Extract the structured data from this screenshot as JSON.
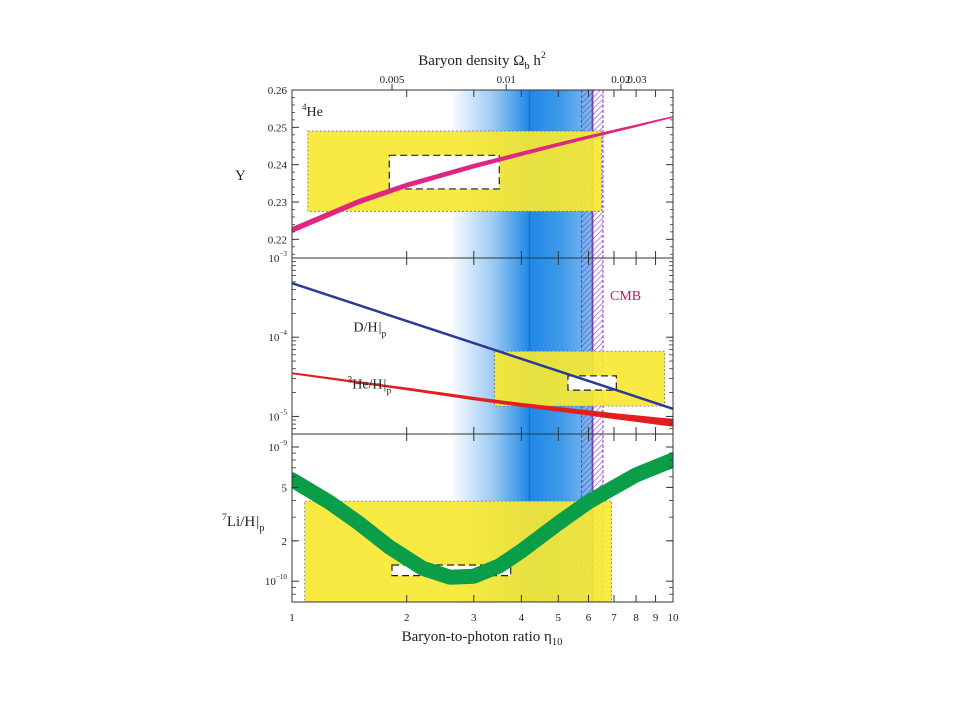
{
  "figure": {
    "top_axis_title": "Baryon density Ω",
    "top_axis_title_sub": "b",
    "top_axis_title_tail": " h",
    "top_axis_title_sup": "2",
    "bottom_axis_title": "Baryon-to-photon ratio η",
    "bottom_axis_title_sub": "10",
    "cmb_label": "CMB"
  },
  "chart_data": {
    "type": "line",
    "x_scale": "log",
    "xlim": [
      1,
      10
    ],
    "x_ticks": [
      1,
      2,
      3,
      4,
      5,
      6,
      7,
      8,
      9,
      10
    ],
    "top_axis": {
      "ticks": [
        {
          "label": "0.005",
          "eta10": 1.83
        },
        {
          "label": "0.01",
          "eta10": 3.65
        },
        {
          "label": "0.02",
          "eta10": 7.3
        },
        {
          "label": "0.03",
          "eta10": 10.95
        }
      ]
    },
    "bands": {
      "bbn_concordance": {
        "eta10_range": [
          2.6,
          6.2
        ],
        "peak_eta10": 4.2,
        "color": "#1e88e5"
      },
      "cmb": {
        "eta10_range": [
          5.75,
          6.55
        ],
        "label": "CMB",
        "color": "#8a2be2",
        "label_color": "#c2185b"
      }
    },
    "panels": [
      {
        "id": "he4",
        "label": "He",
        "label_sup": "4",
        "ylabel": "Y",
        "yscale": "linear",
        "ylim": [
          0.215,
          0.26
        ],
        "y_ticks": [
          {
            "label": "0.22",
            "value": 0.22
          },
          {
            "label": "0.23",
            "value": 0.23
          },
          {
            "label": "0.24",
            "value": 0.24
          },
          {
            "label": "0.25",
            "value": 0.25
          },
          {
            "label": "0.26",
            "value": 0.26
          }
        ],
        "series": [
          {
            "color": "#e0267f",
            "x": [
              1.0,
              1.5,
              2.0,
              3.0,
              4.0,
              5.0,
              6.0,
              7.0,
              8.0,
              9.0,
              10.0
            ],
            "y": [
              0.2225,
              0.2301,
              0.2345,
              0.2396,
              0.2429,
              0.2454,
              0.2474,
              0.249,
              0.2504,
              0.2517,
              0.2528
            ],
            "width_start": 6,
            "width_end": 1.6
          }
        ],
        "obs_boxes": [
          {
            "x": [
              1.1,
              6.5
            ],
            "y": [
              0.2275,
              0.249
            ],
            "style": "yellow",
            "color": "#f7e832"
          },
          {
            "x": [
              1.8,
              3.5
            ],
            "y": [
              0.2335,
              0.2425
            ],
            "style": "dashed-white"
          }
        ]
      },
      {
        "id": "d_he3",
        "ylabel": "",
        "yscale": "log",
        "ylim": [
          6e-06,
          0.001
        ],
        "y_ticks": [
          {
            "base": "10",
            "exp": "−3",
            "value": 0.001
          },
          {
            "base": "10",
            "exp": "−4",
            "value": 0.0001
          },
          {
            "base": "10",
            "exp": "−5",
            "value": 1e-05
          }
        ],
        "series": [
          {
            "label": "D/H",
            "label_sub": "p",
            "color": "#2b3a98",
            "x": [
              1,
              10
            ],
            "y": [
              0.00048,
              1.25e-05
            ],
            "width": 2.5,
            "label_at": {
              "x": 1.45,
              "y": 0.000118
            }
          },
          {
            "label": "He/H",
            "label_sup": "3",
            "label_sub": "p",
            "color": "#e02020",
            "x": [
              1.0,
              2.0,
              3.0,
              4.0,
              5.0,
              6.0,
              7.0,
              8.0,
              9.0,
              10.0
            ],
            "y": [
              3.5e-05,
              2.23e-05,
              1.68e-05,
              1.4e-05,
              1.23e-05,
              1.11e-05,
              1.01e-05,
              9.4e-06,
              8.8e-06,
              8.3e-06
            ],
            "width_start": 2,
            "width_end": 8,
            "label_at": {
              "x": 1.4,
              "y": 2.25e-05
            }
          }
        ],
        "obs_boxes": [
          {
            "x": [
              3.4,
              9.5
            ],
            "y": [
              1.35e-05,
              6.65e-05
            ],
            "style": "yellow",
            "color": "#f7e832"
          },
          {
            "x": [
              5.3,
              7.1
            ],
            "y": [
              2.15e-05,
              3.25e-05
            ],
            "style": "dashed-white"
          }
        ]
      },
      {
        "id": "li7",
        "label": "Li/H",
        "label_sup": "7",
        "label_sub": "p",
        "ylabel": "Li/H",
        "yscale": "log",
        "ylim": [
          7e-11,
          1.25e-09
        ],
        "y_ticks": [
          {
            "base": "10",
            "exp": "−9",
            "value": 1e-09
          },
          {
            "label": "5",
            "value": 5e-10
          },
          {
            "label": "2",
            "value": 2e-10
          },
          {
            "base": "10",
            "exp": "−10",
            "value": 1e-10
          }
        ],
        "series": [
          {
            "color": "#0b9e48",
            "x": [
              1.0,
              1.25,
              1.5,
              1.8,
              2.2,
              2.6,
              3.0,
              3.5,
              4.0,
              5.0,
              6.0,
              7.0,
              8.0,
              10.0
            ],
            "y": [
              5.7e-10,
              3.9e-10,
              2.7e-10,
              1.8e-10,
              1.25e-10,
              1.07e-10,
              1.09e-10,
              1.3e-10,
              1.68e-10,
              2.7e-10,
              3.9e-10,
              5e-10,
              6.2e-10,
              8e-10
            ],
            "width": 15
          }
        ],
        "obs_boxes": [
          {
            "x": [
              1.08,
              6.9
            ],
            "y": [
              7e-11,
              3.95e-10
            ],
            "style": "yellow",
            "color": "#f7e832"
          },
          {
            "x": [
              1.83,
              3.75
            ],
            "y": [
              1.1e-10,
              1.32e-10
            ],
            "style": "dashed-white"
          }
        ]
      }
    ]
  }
}
